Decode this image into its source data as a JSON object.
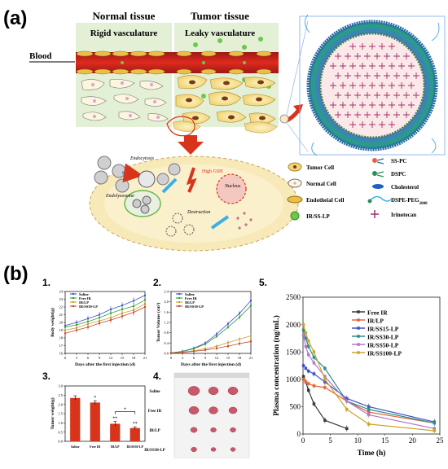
{
  "panel_a": {
    "tag": "(a)",
    "normal_tissue": "Normal tissue",
    "rigid": "Rigid vasculature",
    "tumor_tissue": "Tumor tissue",
    "leaky": "Leaky vasculature",
    "blood": "Blood",
    "endocytosis": "Endocytosis",
    "endolysosome": "Endolysosome",
    "gsh": "High GSH",
    "nucleus": "Nucleus",
    "destruction": "Destruction",
    "legend": [
      {
        "label": "Tumor Cell",
        "icon": "tumor-cell-icon"
      },
      {
        "label": "Normal Cell",
        "icon": "normal-cell-icon"
      },
      {
        "label": "Endotheial Cell",
        "icon": "endothelial-cell-icon"
      },
      {
        "label": "IR/SS-LP",
        "icon": "liposome-icon"
      },
      {
        "label": "SS-PC",
        "icon": "ss-pc-icon"
      },
      {
        "label": "DSPC",
        "icon": "dspc-icon"
      },
      {
        "label": "Cholesterol",
        "icon": "cholesterol-icon"
      },
      {
        "label": "DSPE-PEG",
        "sub": "2000",
        "icon": "dspe-peg-icon"
      },
      {
        "label": "Irinotecan",
        "icon": "irinotecan-icon"
      }
    ]
  },
  "panel_b": {
    "tag": "(b)",
    "sub_labels": [
      "1.",
      "2.",
      "3.",
      "4.",
      "5."
    ],
    "photo_rows": [
      "Saline",
      "Free IR",
      "IR/LP",
      "IR/SS30-LP"
    ],
    "significance": "*",
    "significance2": "**"
  },
  "chart_data": [
    {
      "id": "body-weight",
      "type": "line",
      "ylabel": "Body weight(g)",
      "xlabel": "Days after the first injection (d)",
      "xlim": [
        0,
        21
      ],
      "ylim": [
        16,
        24
      ],
      "x_ticks": [
        0,
        3,
        6,
        9,
        12,
        15,
        18,
        21
      ],
      "y_ticks": [
        16,
        17,
        18,
        19,
        20,
        21,
        22,
        23,
        24
      ],
      "x": [
        0,
        3,
        6,
        9,
        12,
        15,
        18,
        21
      ],
      "series": [
        {
          "name": "Saline",
          "color": "#3f51c6",
          "values": [
            19.6,
            20.0,
            20.5,
            21.0,
            21.7,
            22.2,
            22.8,
            23.5
          ]
        },
        {
          "name": "Free IR",
          "color": "#2f9e3a",
          "values": [
            19.4,
            19.7,
            20.1,
            20.6,
            21.2,
            21.7,
            22.1,
            22.9
          ]
        },
        {
          "name": "IR/LP",
          "color": "#c9a02a",
          "values": [
            19.0,
            19.3,
            19.8,
            20.2,
            20.6,
            21.2,
            21.6,
            22.4
          ]
        },
        {
          "name": "IR/SS30-LP",
          "color": "#c8452c",
          "values": [
            18.6,
            19.0,
            19.4,
            19.9,
            20.3,
            20.8,
            21.3,
            22.0
          ]
        }
      ]
    },
    {
      "id": "tumor-volume",
      "type": "line",
      "ylabel": "Tumor Volume (cm³)",
      "xlabel": "Days after the first injection (d)",
      "xlim": [
        0,
        21
      ],
      "ylim": [
        0,
        2.4
      ],
      "x_ticks": [
        0,
        3,
        6,
        9,
        12,
        15,
        18,
        21
      ],
      "y_ticks": [
        0.0,
        0.4,
        0.8,
        1.2,
        1.6,
        2.0,
        2.4
      ],
      "x": [
        0,
        3,
        6,
        9,
        12,
        15,
        18,
        21
      ],
      "series": [
        {
          "name": "Saline",
          "color": "#3f51c6",
          "values": [
            0.02,
            0.08,
            0.2,
            0.4,
            0.75,
            1.15,
            1.55,
            2.05
          ]
        },
        {
          "name": "Free IR",
          "color": "#2f9e3a",
          "values": [
            0.02,
            0.07,
            0.18,
            0.36,
            0.66,
            1.02,
            1.4,
            1.85
          ]
        },
        {
          "name": "IR/LP",
          "color": "#c9a02a",
          "values": [
            0.02,
            0.05,
            0.1,
            0.18,
            0.28,
            0.42,
            0.55,
            0.68
          ]
        },
        {
          "name": "IR/SS30-LP",
          "color": "#c8452c",
          "values": [
            0.02,
            0.04,
            0.08,
            0.13,
            0.2,
            0.28,
            0.38,
            0.46
          ]
        }
      ]
    },
    {
      "id": "tumor-weight",
      "type": "bar",
      "ylabel": "Tumor weight(g)",
      "categories": [
        "Saline",
        "Free IR",
        "IR/LP",
        "IR/SS30-LP"
      ],
      "values": [
        2.35,
        2.1,
        0.95,
        0.72
      ],
      "errors": [
        0.12,
        0.1,
        0.12,
        0.07
      ],
      "ylim": [
        0,
        3.0
      ],
      "y_ticks": [
        0.0,
        0.5,
        1.0,
        1.5,
        2.0,
        2.5,
        3.0
      ],
      "color": "#d8341c"
    },
    {
      "id": "plasma-concentration",
      "type": "line",
      "ylabel": "Plasma concentration (ng/mL)",
      "xlabel": "Time (h)",
      "xlim": [
        0,
        25
      ],
      "ylim": [
        0,
        2500
      ],
      "x_ticks": [
        0,
        5,
        10,
        15,
        20,
        25
      ],
      "y_ticks": [
        0,
        500,
        1000,
        1500,
        2000,
        2500
      ],
      "legend_position": "top-right",
      "series": [
        {
          "name": "Free IR",
          "color": "#3a3a3a",
          "x": [
            0.083,
            0.5,
            1,
            2,
            4,
            8
          ],
          "values": [
            1050,
            950,
            800,
            550,
            250,
            100
          ]
        },
        {
          "name": "IR/LP",
          "color": "#e2663a",
          "x": [
            0.083,
            0.5,
            1,
            2,
            4,
            8,
            12,
            24
          ],
          "values": [
            1000,
            950,
            920,
            880,
            850,
            600,
            400,
            200
          ]
        },
        {
          "name": "IR/SS15-LP",
          "color": "#3f51c6",
          "x": [
            0.083,
            0.5,
            1,
            2,
            4,
            8,
            12,
            24
          ],
          "values": [
            1250,
            1200,
            1150,
            1100,
            950,
            650,
            500,
            220
          ]
        },
        {
          "name": "IR/SS30-LP",
          "color": "#2a8f8f",
          "x": [
            0.083,
            0.5,
            1,
            2,
            4,
            8,
            12,
            24
          ],
          "values": [
            1900,
            1750,
            1600,
            1400,
            1200,
            600,
            450,
            200
          ]
        },
        {
          "name": "IR/SS50-LP",
          "color": "#b477c9",
          "x": [
            0.083,
            0.5,
            1,
            2,
            4,
            8,
            12,
            24
          ],
          "values": [
            1800,
            1600,
            1450,
            1300,
            1050,
            600,
            350,
            100
          ]
        },
        {
          "name": "IR/SS100-LP",
          "color": "#c9a72a",
          "x": [
            0.083,
            0.5,
            1,
            2,
            4,
            8,
            12,
            24
          ],
          "values": [
            2000,
            1850,
            1700,
            1500,
            1000,
            450,
            180,
            60
          ]
        }
      ]
    }
  ]
}
